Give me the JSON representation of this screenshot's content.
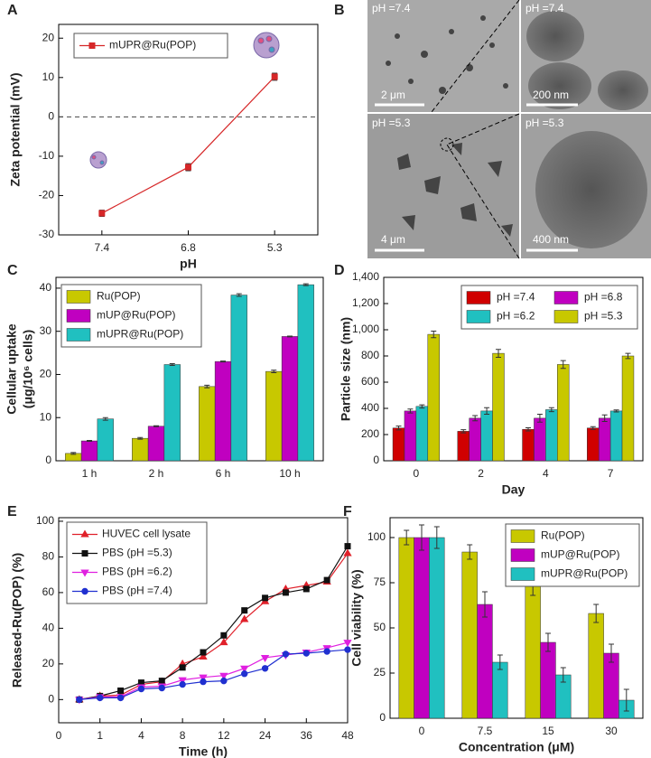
{
  "chart_data": [
    {
      "panel": "A",
      "type": "line",
      "x_label": "pH",
      "y_label": "Zeta potential (mV)",
      "categories": [
        "7.4",
        "6.8",
        "5.3"
      ],
      "series": [
        {
          "name": "mUPR@Ru(POP)",
          "color": "#d62728",
          "marker": "square",
          "values": [
            -24.5,
            -12.8,
            10.2
          ],
          "errors": [
            0.8,
            0.9,
            0.9
          ]
        }
      ],
      "ylim": [
        -30,
        23.5
      ],
      "yticks": [
        -30,
        -20,
        -10,
        0,
        10,
        20
      ],
      "reference_line": 0,
      "legend": "top-left"
    },
    {
      "panel": "C",
      "type": "bar",
      "y_label": [
        "Cellular uptake",
        "(μg/10⁶ cells)"
      ],
      "categories": [
        "1 h",
        "2 h",
        "6 h",
        "10 h"
      ],
      "series": [
        {
          "name": "Ru(POP)",
          "color": "#c8c800",
          "values": [
            1.7,
            5.2,
            17.2,
            20.7
          ],
          "errors": [
            0.2,
            0.2,
            0.3,
            0.3
          ]
        },
        {
          "name": "mUP@Ru(POP)",
          "color": "#c000c0",
          "values": [
            4.6,
            8.0,
            23.0,
            28.8
          ],
          "errors": [
            0.1,
            0.1,
            0.1,
            0.1
          ]
        },
        {
          "name": "mUPR@Ru(POP)",
          "color": "#20c0c0",
          "values": [
            9.7,
            22.3,
            38.4,
            40.8
          ],
          "errors": [
            0.3,
            0.2,
            0.3,
            0.2
          ]
        }
      ],
      "ylim": [
        0,
        42.5
      ],
      "yticks": [
        0,
        10,
        20,
        30,
        40
      ],
      "legend": "top-left"
    },
    {
      "panel": "D",
      "type": "bar",
      "x_label": "Day",
      "y_label": "Particle size (nm)",
      "categories": [
        "0",
        "2",
        "4",
        "7"
      ],
      "series": [
        {
          "name": "pH =7.4",
          "color": "#d00000",
          "values": [
            250,
            225,
            240,
            250
          ],
          "errors": [
            15,
            12,
            12,
            10
          ]
        },
        {
          "name": "pH =6.8",
          "color": "#c000c0",
          "values": [
            380,
            325,
            325,
            325
          ],
          "errors": [
            15,
            20,
            30,
            25
          ]
        },
        {
          "name": "pH =6.2",
          "color": "#20c0c0",
          "values": [
            415,
            380,
            390,
            380
          ],
          "errors": [
            12,
            25,
            15,
            8
          ]
        },
        {
          "name": "pH =5.3",
          "color": "#c8c800",
          "values": [
            965,
            820,
            735,
            800
          ],
          "errors": [
            25,
            30,
            30,
            20
          ]
        }
      ],
      "ylim": [
        0,
        1400
      ],
      "yticks": [
        0,
        200,
        400,
        600,
        800,
        {
          "value": 1000,
          "label": "1,000"
        },
        {
          "value": 1200,
          "label": "1,200"
        },
        {
          "value": 1400,
          "label": "1,400"
        }
      ],
      "legend": "top-right",
      "legend_columns": 2
    },
    {
      "panel": "E",
      "type": "line",
      "x_label": "Time (h)",
      "y_label": "Released-Ru(POP) (%)",
      "x": [
        0.5,
        1,
        1.5,
        2,
        2.5,
        3,
        3.5,
        4,
        4.5,
        5,
        5.5,
        6,
        6.5,
        7
      ],
      "series": [
        {
          "name": "HUVEC cell lysate",
          "color": "#e0202a",
          "marker": "triangle",
          "values": [
            0,
            2,
            2.5,
            8.5,
            10,
            20,
            24,
            32,
            45,
            55,
            62,
            64,
            66,
            82
          ]
        },
        {
          "name": "PBS (pH =5.3)",
          "color": "#111111",
          "marker": "square",
          "values": [
            0,
            2,
            5,
            9.5,
            10.5,
            18,
            26.5,
            36,
            50,
            57,
            60,
            62,
            67,
            86
          ]
        },
        {
          "name": "PBS (pH =6.2)",
          "color": "#e020e0",
          "marker": "triangle-down",
          "values": [
            0,
            1.5,
            1.5,
            7,
            7.5,
            11,
            12.5,
            13.5,
            17.5,
            23.5,
            25,
            26.5,
            29,
            32
          ]
        },
        {
          "name": "PBS (pH =7.4)",
          "color": "#2030d0",
          "marker": "circle",
          "values": [
            0,
            1,
            1,
            6,
            6.5,
            8.5,
            10,
            10.5,
            14.5,
            17.5,
            25.5,
            26,
            27,
            28
          ]
        }
      ],
      "xlim": [
        0,
        7
      ],
      "xticks": [
        0,
        1,
        {
          "value": 2,
          "label": "4"
        },
        {
          "value": 3,
          "label": "8"
        },
        {
          "value": 4,
          "label": "12"
        },
        {
          "value": 5,
          "label": "24"
        },
        {
          "value": 6,
          "label": "36"
        },
        {
          "value": 7,
          "label": "48"
        }
      ],
      "ylim": [
        -13,
        102
      ],
      "yticks": [
        0,
        20,
        40,
        60,
        80,
        100
      ],
      "legend": "top-left"
    },
    {
      "panel": "F",
      "type": "bar",
      "x_label": "Concentration (μM)",
      "y_label": "Cell viability (%)",
      "categories": [
        "0",
        "7.5",
        "15",
        "30"
      ],
      "series": [
        {
          "name": "Ru(POP)",
          "color": "#c8c800",
          "values": [
            100,
            92,
            73,
            58
          ],
          "errors": [
            4,
            4,
            5,
            5
          ]
        },
        {
          "name": "mUP@Ru(POP)",
          "color": "#c000c0",
          "values": [
            100,
            63,
            42,
            36
          ],
          "errors": [
            7,
            7,
            5,
            5
          ]
        },
        {
          "name": "mUPR@Ru(POP)",
          "color": "#20c0c0",
          "values": [
            100,
            31,
            24,
            10
          ],
          "errors": [
            6,
            4,
            4,
            6
          ]
        }
      ],
      "ylim": [
        0,
        111
      ],
      "yticks": [
        0,
        25,
        50,
        75,
        100
      ],
      "legend": "top-right"
    }
  ],
  "images": {
    "panel": "B",
    "tiles": [
      {
        "label": "pH =7.4",
        "scale": "2 μm"
      },
      {
        "label": "pH =7.4",
        "scale": "200 nm"
      },
      {
        "label": "pH =5.3",
        "scale": "4 μm"
      },
      {
        "label": "pH =5.3",
        "scale": "400 nm"
      }
    ]
  }
}
